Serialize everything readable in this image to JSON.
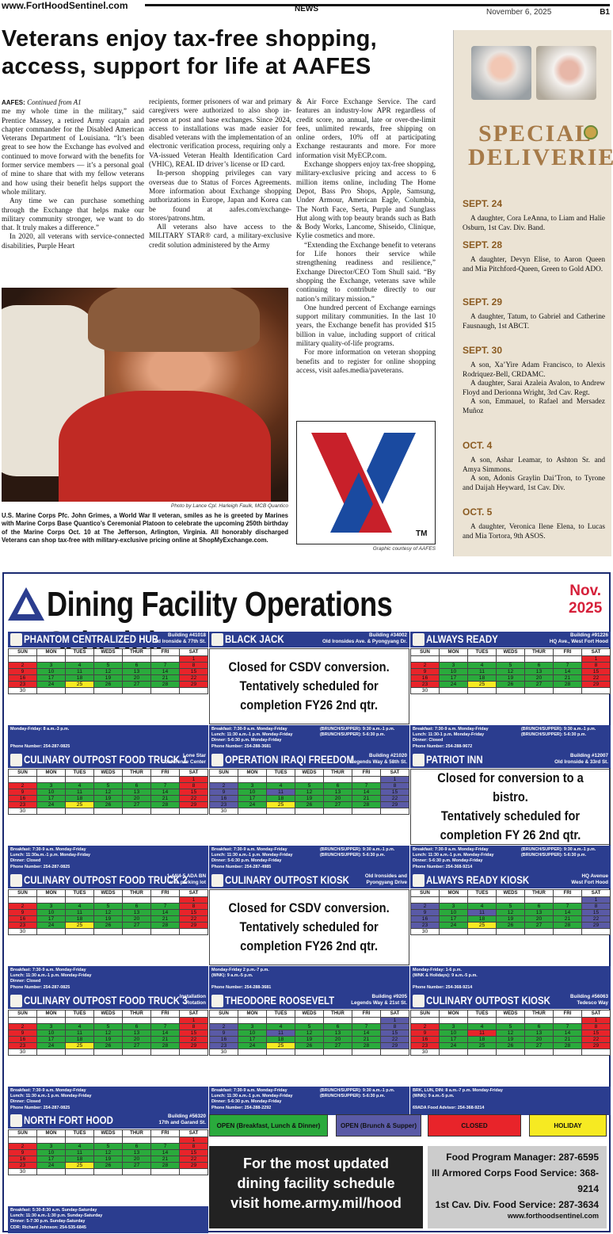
{
  "header": {
    "site": "www.FortHoodSentinel.com",
    "section": "NEWS",
    "date": "November 6, 2025",
    "page": "B1"
  },
  "article": {
    "headline_1": "Veterans enjoy tax-free shopping,",
    "headline_2": "access, support for life at AAFES",
    "byline": "AAFES:",
    "continued": "Continued from A1",
    "col1": [
      "me my whole time in the military,” said Prentice Massey, a retired Army captain and chapter commander for the Disabled American Veterans Department of Louisiana. “It’s been great to see how the Exchange has evolved and continued to move forward with the benefits for former service members — it’s a personal goal of mine to share that with my fellow veterans and how using their benefit helps support the whole military.",
      "Any time we can purchase something through the Exchange that helps make our military community stronger, we want to do that. It truly makes a difference.”",
      "In 2020, all veterans with service-connected disabilities, Purple Heart"
    ],
    "col2": [
      "recipients, former prisoners of war and primary caregivers were authorized to also shop in-person at post and base exchanges. Since 2024, access to installations was made easier for disabled veterans with the implementation of an electronic verification process, requiring only a VA-issued Veteran Health Identification Card (VHIC), REAL ID driver’s license or ID card.",
      "In-person shopping privileges can vary overseas due to Status of Forces Agreements. More information about Exchange shopping authorizations in Europe, Japan and Korea can be found at aafes.com/exchange-stores/patrons.htm.",
      "All veterans also have access to the MILITARY STAR® card, a military-exclusive credit solution administered by the Army"
    ],
    "col3": [
      "& Air Force Exchange Service. The card features an industry-low APR regardless of credit score, no annual, late or over-the-limit fees, unlimited rewards, free shipping on online orders, 10% off at participating Exchange restaurants and more. For more information visit MyECP.com.",
      "Exchange shoppers enjoy tax-free shopping, military-exclusive pricing and access to 6 million items online, including The Home Depot, Bass Pro Shops, Apple, Samsung, Under Armour, American Eagle, Columbia, The North Face, Serta, Purple and Sunglass Hut along with top beauty brands such as Bath & Body Works, Lancome, Shiseido, Clinique, Kylie cosmetics and more.",
      "“Extending the Exchange benefit to veterans for Life honors their service while strengthening readiness and resilience,” Exchange Director/CEO Tom Shull said. “By shopping the Exchange, veterans save while continuing to contribute directly to our nation’s military mission.”",
      "One hundred percent of Exchange earnings support military communities. In the last 10 years, the Exchange benefit has provided $15 billion in value, including support of critical military quality-of-life programs.",
      "For more information on veteran shopping benefits and to register for online shopping access, visit aafes.media/paveterans."
    ],
    "photo_credit": "Photo by Lance Cpl. Harleigh Faulk, MCB Quantico",
    "caption": "U.S. Marine Corps Pfc. John Grimes, a World War II veteran, smiles as he is greeted by Marines with Marine Corps Base Quantico’s Ceremonial Platoon to celebrate the upcoming 250th birthday of the Marine Corps Oct. 10 at The Jefferson, Arlington, Virginia. All honorably discharged Veterans can shop tax-free with military-exclusive pricing online at ShopMyExchange.com.",
    "graphic_credit": "Graphic courtesy of AAFES",
    "logo_tm": "TM"
  },
  "deliveries": {
    "title_1": "SPECIAL",
    "title_2": "DELIVERIES",
    "entries": [
      {
        "date": "SEPT. 24",
        "items": [
          "A daughter, Cora LeAnna, to Liam and Halie Osburn, 1st Cav. Div. Band."
        ]
      },
      {
        "date": "SEPT. 28",
        "items": [
          "A daughter, Devyn Elise, to Aaron Queen and Mia Pitchford-Queen, Green to Gold ADO."
        ]
      },
      {
        "date": "SEPT. 29",
        "items": [
          "A daughter, Tatum, to Gabriel and Catherine Fausnaugh, 1st ABCT."
        ]
      },
      {
        "date": "SEPT. 30",
        "items": [
          "A son, Xa’Yire Adam Francisco, to Alexis Rodriquez-Bell, CRDAMC.",
          "A daughter, Sarai Azaleia Avalon, to Andrew Floyd and Derionna Wright, 3rd Cav. Regt.",
          "A son, Emmauel, to Rafael and Mersadez Muñoz"
        ]
      },
      {
        "date": "OCT. 4",
        "items": [
          "A son, Ashar Leamar, to Ashton Sr. and Amya Simmons.",
          "A son, Adonis Graylin Dai’Tron, to Tyrone and Daijah Heyward, 1st Cav. Div."
        ]
      },
      {
        "date": "OCT. 5",
        "items": [
          "A daughter, Veronica Ilene Elena, to Lucas and Mia Tortora, 9th ASOS."
        ]
      }
    ]
  },
  "dining": {
    "title": "Dining Facility Operations Schedule",
    "month": "Nov.",
    "year": "2025",
    "days": [
      "SUN",
      "MON",
      "TUES",
      "WEDS",
      "THUR",
      "FRI",
      "SAT"
    ],
    "cards": [
      {
        "name": "PHANTOM CENTRALIZED HUB",
        "loc1": "Building #41018",
        "loc2": "Old Ironside & 77th St.",
        "cal": "A",
        "info": [
          "Monday-Friday: 8 a.m.-3 p.m.",
          "",
          "",
          "Phone Number: 254-287-0825"
        ],
        "info_r": []
      },
      {
        "name": "BLACK JACK",
        "loc1": "Building #34002",
        "loc2": "Old Ironsides Ave. & Pyongyang Dr.",
        "closed": [
          "Closed for CSDV conversion.",
          "Tentatively scheduled for",
          "completion FY26 2nd qtr."
        ],
        "info": [
          "Breakfast: 7:30-9 a.m. Monday-Friday",
          "Lunch: 11:30 a.m.-1 p.m. Monday-Friday",
          "Dinner: 5-6:30 p.m. Monday-Friday",
          "Phone Number: 254-288-3681"
        ],
        "info_r": [
          "(BRUNCH/SUPPER): 9:30 a.m.-1 p.m.",
          "(BRUNCH/SUPPER): 5-6:30 p.m."
        ]
      },
      {
        "name": "ALWAYS READY",
        "loc1": "Building #91226",
        "loc2": "HQ Ave., West Fort Hood",
        "cal": "A",
        "info": [
          "Breakfast: 7:30-9 a.m. Monday-Friday",
          "Lunch: 11:30-1 p.m. Monday-Friday",
          "Dinner: Closed",
          "Phone Number: 254-288-9672"
        ],
        "info_r": [
          "(BRUNCH/SUPPER): 9:30 a.m.-1 p.m.",
          "(BRUNCH/SUPPER): 5-6:30 p.m."
        ]
      },
      {
        "name": "CULINARY OUTPOST FOOD TRUCK 1",
        "loc1": "Lone Star",
        "loc2": "Conference Center",
        "cal": "A",
        "info": [
          "Breakfast: 7:30-9 a.m. Monday-Friday",
          "Lunch: 11:30a.m.-1 p.m. Monday-Friday",
          "Dinner: Closed",
          "Phone Number: 254-287-0825"
        ],
        "info_r": []
      },
      {
        "name": "OPERATION IRAQI FREEDOM",
        "loc1": "Building #21020",
        "loc2": "Legends Way & 58th St.",
        "cal": "B",
        "info": [
          "Breakfast: 7:30-9 a.m. Monday-Friday",
          "Lunch: 11:30 a.m.-1 p.m. Monday-Friday",
          "Dinner: 5-6:30 p.m. Monday-Friday",
          "Phone Number: 254-287-4985"
        ],
        "info_r": [
          "(BRUNCH/SUPPER): 9:30 a.m.-1 p.m.",
          "(BRUNCH/SUPPER): 5-6:30 p.m."
        ]
      },
      {
        "name": "PATRIOT INN",
        "loc1": "Building #12007",
        "loc2": "Old Ironside & 33rd St.",
        "closed": [
          "Closed for conversion to a bistro.",
          "Tentatively scheduled for",
          "completion FY 26 2nd qtr."
        ],
        "info": [
          "Breakfast: 7:30-9 a.m. Monday-Friday",
          "Lunch: 11:30 a.m.-1 p.m. Monday-Friday",
          "Dinner: 5-6:30 p.m. Monday-Friday",
          "Phone Number: 254-368-9214"
        ],
        "info_r": [
          "(BRUNCH/SUPPER): 9:30 a.m.-1 p.m.",
          "(BRUNCH/SUPPER): 5-6:30 p.m."
        ]
      },
      {
        "name": "CULINARY OUTPOST FOOD TRUCK 2",
        "loc1": "1-44/4-5 ADA BN",
        "loc2": "area parking lot",
        "cal": "A",
        "info": [
          "Breakfast: 7:30-9 a.m. Monday-Friday",
          "Lunch: 11:30 a.m.-1 p.m. Monday-Friday",
          "Dinner: Closed",
          "Phone Number: 254-287-0825"
        ],
        "info_r": []
      },
      {
        "name": "CULINARY OUTPOST KIOSK",
        "loc1": "Old Ironsides and",
        "loc2": "Pyongyang Drive",
        "closed": [
          "Closed for CSDV conversion.",
          "Tentatively scheduled for",
          "completion FY26 2nd qtr."
        ],
        "info": [
          "Monday-Friday 2 p.m.-7 p.m.",
          "(WNK): 9 a.m.-5 p.m.",
          "",
          "Phone Number: 254-288-3681"
        ],
        "info_r": []
      },
      {
        "name": "ALWAYS READY KIOSK",
        "loc1": "HQ Avenue",
        "loc2": "West Fort Hood",
        "cal": "B",
        "info": [
          "Monday-Friday: 1-6 p.m.",
          "(WNK & Holidays): 9 a.m.-5 p.m.",
          "",
          "Phone Number: 254-368-9214"
        ],
        "info_r": []
      },
      {
        "name": "CULINARY OUTPOST FOOD TRUCK 3",
        "loc1": "Installation",
        "loc2": "Rotation",
        "cal": "A",
        "info": [
          "Breakfast: 7:30-9 a.m. Monday-Friday",
          "Lunch: 11:30 a.m.-1 p.m. Monday-Friday",
          "Dinner: Closed",
          "Phone Number: 254-287-0825"
        ],
        "info_r": []
      },
      {
        "name": "THEODORE ROOSEVELT",
        "loc1": "Building #9205",
        "loc2": "Legends Way & 21st St.",
        "cal": "B",
        "info": [
          "Breakfast: 7:30-9 a.m. Monday-Friday",
          "Lunch: 11:30 a.m.-1 p.m. Monday-Friday",
          "Dinner: 5-6:30 p.m. Monday-Friday",
          "Phone Number: 254-288-2292"
        ],
        "info_r": [
          "(BRUNCH/SUPPER): 9:30 a.m.-1 p.m.",
          "(BRUNCH/SUPPER): 5-6:30 p.m."
        ]
      },
      {
        "name": "CULINARY OUTPOST KIOSK",
        "loc1": "Building #56063",
        "loc2": "Tedesco Way",
        "cal": "C",
        "info": [
          "BRK, LUN, DIN: 8 a.m.-7 p.m. Monday-Friday",
          "(WNK): 9 a.m.-5 p.m.",
          "",
          "69ADA Food Advisor: 254-368-9214"
        ],
        "info_r": []
      },
      {
        "name": "NORTH FORT HOOD",
        "loc1": "Building #56320",
        "loc2": "17th and Garand St.",
        "cal": "A",
        "info": [
          "Breakfast: 5:30-8:30 a.m. Sunday-Saturday",
          "Lunch: 11:30 a.m.-1:30 p.m. Sunday-Saturday",
          "Dinner: 5-7:30 p.m. Sunday-Saturday",
          "CDR: Richard Johnson: 254-535-6845"
        ],
        "info_r": []
      }
    ],
    "legend": {
      "open": "OPEN (Breakfast, Lunch & Dinner)",
      "brunch": "OPEN (Brunch & Supper)",
      "closed": "CLOSED",
      "holiday": "HOLIDAY"
    },
    "colors": {
      "open": "#2aaa3c",
      "brunch": "#5a5aa6",
      "closed": "#e8242a",
      "holiday": "#f6ea22",
      "header": "#2b3d8f"
    },
    "promo": [
      "For the most updated",
      "dining facility schedule",
      "visit home.army.mil/hood"
    ],
    "contacts": [
      "Food Program Manager: 287-6595",
      "III Armored Corps Food Service: 368-9214",
      "1st Cav. Div. Food Service: 287-3634"
    ],
    "web": "www.forthoodsentinel.com"
  }
}
